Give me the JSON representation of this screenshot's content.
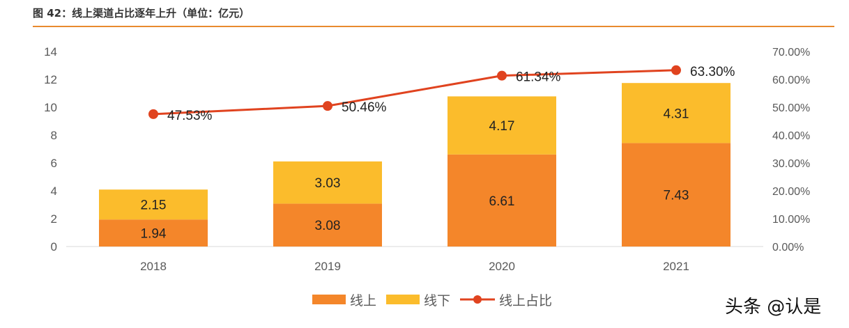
{
  "title": "图 42：线上渠道占比逐年上升（单位：亿元）",
  "watermark": "头条 @认是",
  "chart_data": {
    "type": "bar",
    "stacked": true,
    "categories": [
      "2018",
      "2019",
      "2020",
      "2021"
    ],
    "series": [
      {
        "name": "线上",
        "values": [
          1.94,
          3.08,
          6.61,
          7.43
        ],
        "color": "#F4862A",
        "axis": "left"
      },
      {
        "name": "线下",
        "values": [
          2.15,
          3.03,
          4.17,
          4.31
        ],
        "color": "#FBBC2C",
        "axis": "left"
      },
      {
        "name": "线上占比",
        "type": "line",
        "values": [
          47.53,
          50.46,
          61.34,
          63.3
        ],
        "labels": [
          "47.53%",
          "50.46%",
          "61.34%",
          "63.30%"
        ],
        "color": "#E0431F",
        "axis": "right"
      }
    ],
    "ylim": [
      0,
      14
    ],
    "yticks": [
      "0",
      "2",
      "4",
      "6",
      "8",
      "10",
      "12",
      "14"
    ],
    "y2lim": [
      0,
      70
    ],
    "y2ticks": [
      "0.00%",
      "10.00%",
      "20.00%",
      "30.00%",
      "40.00%",
      "50.00%",
      "60.00%",
      "70.00%"
    ],
    "legend": "bottom",
    "grid": false
  }
}
